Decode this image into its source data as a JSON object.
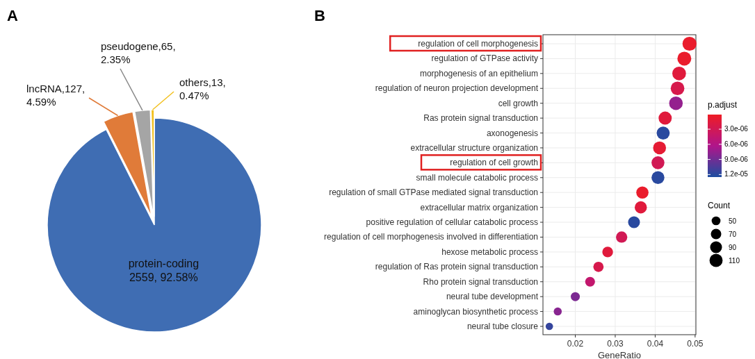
{
  "chart_data": [
    {
      "type": "pie",
      "title": "A",
      "categories": [
        "protein-coding",
        "lncRNA",
        "pseudogene",
        "others"
      ],
      "values": [
        2559,
        127,
        65,
        13
      ],
      "colors": [
        "#3f6db3",
        "#e07b39",
        "#a5a5a5",
        "#f2c01e"
      ],
      "value_labels": [
        "2559, 92.58%",
        "127,\n4.59%",
        "65,\n2.35%",
        "13,\n0.47%"
      ]
    },
    {
      "type": "bubble",
      "title": "B",
      "orientation": "horizontal",
      "categories": [
        "regulation of cell morphogenesis",
        "regulation of GTPase activity",
        "morphogenesis of an epithelium",
        "regulation of neuron projection development",
        "cell growth",
        "Ras protein signal transduction",
        "axonogenesis",
        "extracellular structure organization",
        "regulation of cell growth",
        "small molecule catabolic process",
        "regulation of small GTPase mediated signal transduction",
        "extracellular matrix organization",
        "positive regulation of cellular catabolic process",
        "regulation of cell morphogenesis involved in differentiation",
        "hexose metabolic process",
        "regulation of Ras protein signal transduction",
        "Rho protein signal transduction",
        "neural tube development",
        "aminoglycan biosynthetic process",
        "neural tube closure"
      ],
      "values": [
        0.0486,
        0.0473,
        0.046,
        0.0456,
        0.0452,
        0.0425,
        0.042,
        0.0411,
        0.0407,
        0.0407,
        0.0368,
        0.0364,
        0.0347,
        0.0316,
        0.0281,
        0.0258,
        0.0237,
        0.02,
        0.0156,
        0.0135
      ],
      "sizes": [
        126,
        123,
        120,
        119,
        118,
        111,
        109,
        107,
        106,
        106,
        96,
        95,
        90,
        82,
        73,
        67,
        62,
        52,
        41,
        35
      ],
      "size_legend": [
        50,
        70,
        90,
        110
      ],
      "legend_title": "Count",
      "cvalues": [
        5e-07,
        5e-07,
        1.5e-06,
        2.5e-06,
        7.5e-06,
        1.5e-06,
        1.2e-05,
        1e-06,
        3e-06,
        1.2e-05,
        5e-07,
        1.5e-06,
        1.2e-05,
        3e-06,
        1.5e-06,
        2.5e-06,
        4.5e-06,
        8.5e-06,
        8e-06,
        1.15e-05
      ],
      "clabel": "p.adjust",
      "clim": [
        1e-07,
        1.25e-05
      ],
      "cticks": [
        {
          "value": 3e-06,
          "label": "3.0e-06"
        },
        {
          "value": 6e-06,
          "label": "6.0e-06"
        },
        {
          "value": 9e-06,
          "label": "9.0e-06"
        },
        {
          "value": 1.2e-05,
          "label": "1.2e-05"
        }
      ],
      "xlim": [
        0.0119,
        0.0502
      ],
      "xticks": [
        0.02,
        0.03,
        0.04,
        0.05
      ],
      "xlabel": "GeneRatio",
      "grid": true
    }
  ]
}
